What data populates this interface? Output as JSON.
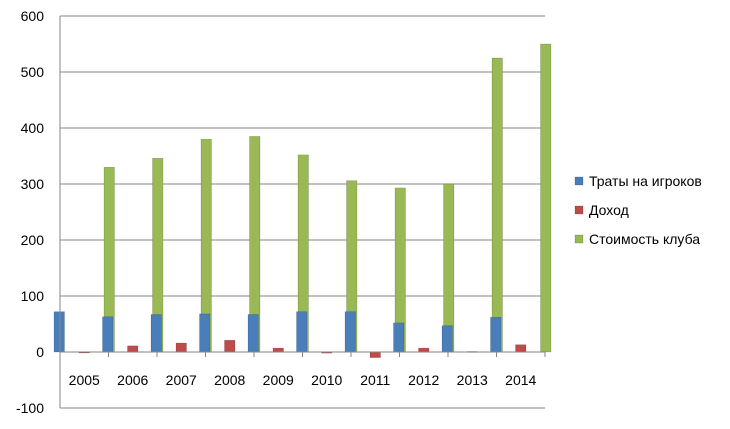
{
  "chart_data": {
    "type": "bar",
    "categories": [
      "2005",
      "2006",
      "2007",
      "2008",
      "2009",
      "2010",
      "2011",
      "2012",
      "2013",
      "2014"
    ],
    "series": [
      {
        "name": "Траты на игроков",
        "color": "#4a7ebb",
        "values": [
          72,
          63,
          67,
          68,
          67,
          72,
          72,
          52,
          47,
          62
        ]
      },
      {
        "name": "Доход",
        "color": "#be4b48",
        "values": [
          -1,
          11,
          16,
          21,
          7,
          -2,
          -10,
          7,
          1,
          13
        ]
      },
      {
        "name": "Стоимость клуба",
        "color": "#98b954",
        "values": [
          330,
          346,
          380,
          385,
          352,
          306,
          293,
          300,
          525,
          550
        ]
      }
    ],
    "yticks": [
      "600",
      "500",
      "400",
      "300",
      "200",
      "100",
      "0",
      "-100"
    ],
    "ylim": [
      -100,
      600
    ],
    "grid": true,
    "legend_position": "right"
  }
}
